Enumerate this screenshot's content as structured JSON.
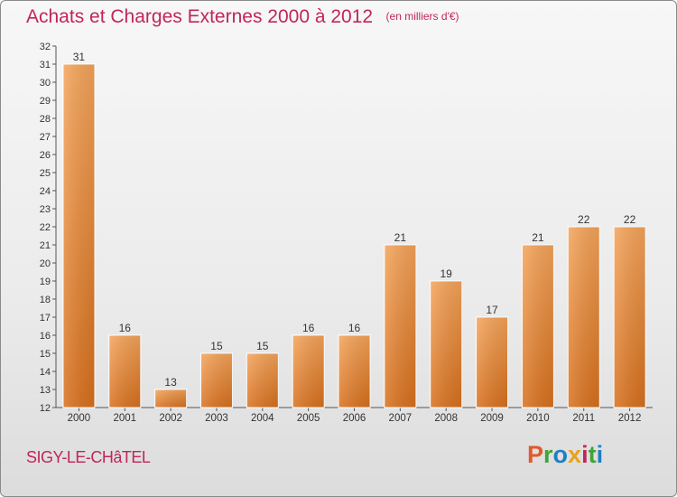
{
  "title": "Achats et Charges Externes 2000 à 2012",
  "subtitle": "(en milliers d'€)",
  "town": "SIGY-LE-CHâTEL",
  "logo": {
    "text": "Proxiti",
    "letter_colors": [
      "#e05a2b",
      "#3fa535",
      "#1f7fc4",
      "#e8a21a",
      "#c0265a",
      "#3fa535",
      "#1f7fc4"
    ]
  },
  "colors": {
    "accent": "#c0265a",
    "bar_light": "#f5a45a",
    "bar_dark": "#d86f1c"
  },
  "chart_data": {
    "type": "bar",
    "categories": [
      "2000",
      "2001",
      "2002",
      "2003",
      "2004",
      "2005",
      "2006",
      "2007",
      "2008",
      "2009",
      "2010",
      "2011",
      "2012"
    ],
    "values": [
      31,
      16,
      13,
      15,
      15,
      16,
      16,
      21,
      19,
      17,
      21,
      22,
      22
    ],
    "data_labels": [
      "31",
      "16",
      "13",
      "15",
      "15",
      "16",
      "16",
      "21",
      "19",
      "17",
      "21",
      "22",
      "22"
    ],
    "ylim": [
      12,
      32
    ],
    "yticks": [
      12,
      13,
      14,
      15,
      16,
      17,
      18,
      19,
      20,
      21,
      22,
      23,
      24,
      25,
      26,
      27,
      28,
      29,
      30,
      31,
      32
    ],
    "grid": false
  }
}
